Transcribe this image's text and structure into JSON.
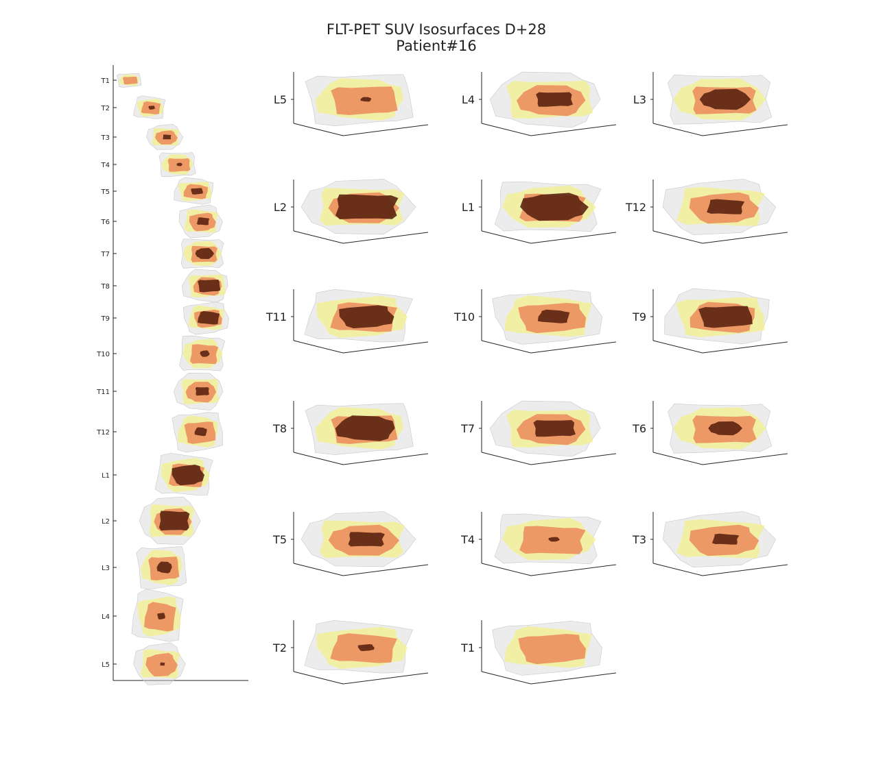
{
  "title": "FLT-PET SUV Isosurfaces D+28",
  "subtitle": "Patient#16",
  "colors": {
    "outer_surface": "#d4d4d4",
    "mid_surface": "#f3f08c",
    "inner_surface": "#ec8a5c",
    "core_surface": "#5a2410",
    "axis": "#222222"
  },
  "chart_data": [
    {
      "type": "isosurface-stack",
      "description_panel": "spine overview",
      "ytick_labels": [
        "T1",
        "T2",
        "T3",
        "T4",
        "T5",
        "T6",
        "T7",
        "T8",
        "T9",
        "T10",
        "T11",
        "T12",
        "L1",
        "L2",
        "L3",
        "L4",
        "L5"
      ]
    },
    {
      "type": "isosurface-grid",
      "panel_labels": [
        "L5",
        "L4",
        "L3",
        "L2",
        "L1",
        "T12",
        "T11",
        "T10",
        "T9",
        "T8",
        "T7",
        "T6",
        "T5",
        "T4",
        "T3",
        "T2",
        "T1"
      ]
    }
  ]
}
